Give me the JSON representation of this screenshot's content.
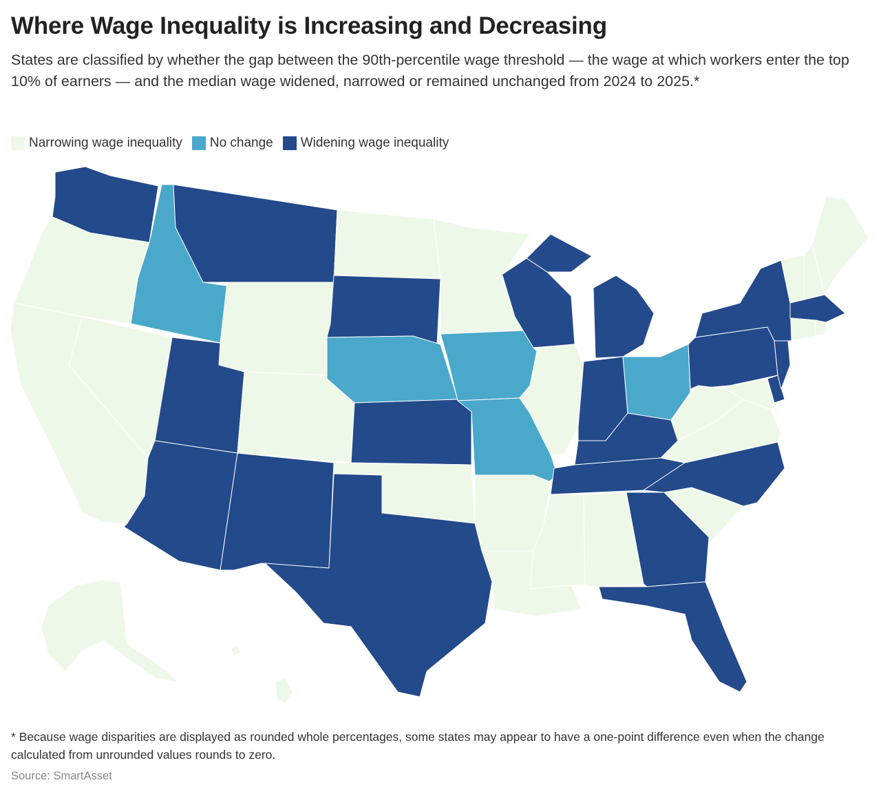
{
  "header": {
    "title": "Where Wage Inequality is Increasing and Decreasing",
    "subtitle": "States are classified by whether the gap between the 90th-percentile wage threshold — the wage at which workers enter the top 10% of earners — and the median wage widened, narrowed or remained unchanged from 2024 to 2025.*"
  },
  "legend": {
    "items": [
      {
        "label": "Narrowing wage inequality",
        "color": "#eef8e8"
      },
      {
        "label": "No change",
        "color": "#4aa8cb"
      },
      {
        "label": "Widening wage inequality",
        "color": "#234a8a"
      }
    ]
  },
  "colors": {
    "narrowing": "#eef8e8",
    "no_change": "#4aa8cb",
    "widening": "#234a8a"
  },
  "map": {
    "categories": {
      "narrowing": [
        "OR",
        "CA",
        "NV",
        "WY",
        "CO",
        "ND",
        "MN",
        "OK",
        "AR",
        "LA",
        "MS",
        "AL",
        "SC",
        "VA",
        "WV",
        "MD",
        "ME",
        "VT",
        "NH",
        "CT",
        "RI",
        "IL",
        "AK",
        "HI"
      ],
      "no_change": [
        "ID",
        "NE",
        "IA",
        "MO",
        "OH"
      ],
      "widening": [
        "WA",
        "MT",
        "UT",
        "AZ",
        "NM",
        "TX",
        "SD",
        "KS",
        "WI",
        "MI",
        "IN",
        "KY",
        "TN",
        "NC",
        "GA",
        "FL",
        "PA",
        "NY",
        "NJ",
        "DE",
        "MA"
      ]
    }
  },
  "footnote": "* Because wage disparities are displayed as rounded whole percentages, some states may appear to have a one-point difference even when the change calculated from unrounded values rounds to zero.",
  "source": "Source: SmartAsset"
}
